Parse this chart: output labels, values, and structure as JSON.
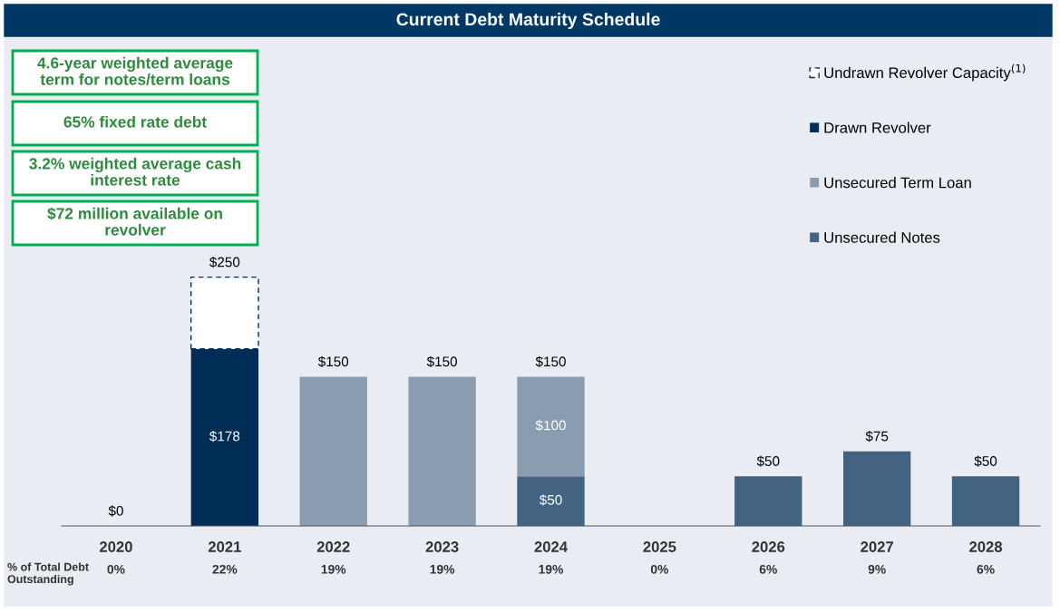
{
  "chart_data": {
    "type": "bar",
    "title": "Current Debt Maturity Schedule",
    "stacked": true,
    "categories": [
      "2020",
      "2021",
      "2022",
      "2023",
      "2024",
      "2025",
      "2026",
      "2027",
      "2028"
    ],
    "series": [
      {
        "name": "Unsecured Notes",
        "color": "#426382",
        "values": [
          0,
          0,
          0,
          0,
          50,
          0,
          50,
          75,
          50
        ],
        "value_labels": [
          null,
          null,
          null,
          null,
          "$50",
          null,
          null,
          null,
          null
        ]
      },
      {
        "name": "Unsecured Term Loan",
        "color": "#8a9db0",
        "values": [
          0,
          0,
          150,
          150,
          100,
          0,
          0,
          0,
          0
        ],
        "value_labels": [
          null,
          null,
          null,
          null,
          "$100",
          null,
          null,
          null,
          null
        ]
      },
      {
        "name": "Drawn Revolver",
        "color": "#002d56",
        "values": [
          0,
          178,
          0,
          0,
          0,
          0,
          0,
          0,
          0
        ],
        "value_labels": [
          null,
          "$178",
          null,
          null,
          null,
          null,
          null,
          null,
          null
        ]
      },
      {
        "name": "Undrawn Revolver Capacity$^{(1)}$",
        "color": "#ffffff",
        "line_style": "dashed",
        "values": [
          0,
          72,
          0,
          0,
          0,
          0,
          0,
          0,
          0
        ]
      }
    ],
    "totals": [
      "$0",
      "$250",
      "$150",
      "$150",
      "$150",
      null,
      "$50",
      "$75",
      "$50"
    ],
    "legend": "top right",
    "tick_labels": "x",
    "grid": false,
    "annotations": [
      "4.6-year weighted average\nterm for notes/term loans",
      "65% fixed rate debt",
      "3.2% weighted average cash\ninterest rate",
      "$72 million available on\nrevolver",
      "% of Total Debt\nOutstanding",
      "0%",
      "22%",
      "19%",
      "19%",
      "19%",
      "0%",
      "6%",
      "9%",
      "6%"
    ]
  }
}
